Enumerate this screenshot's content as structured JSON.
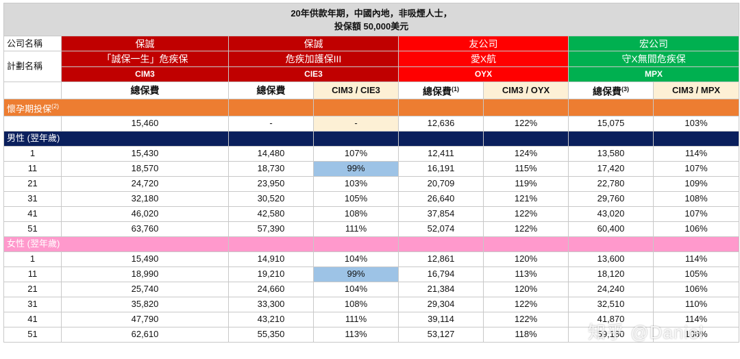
{
  "title_line1": "20年供款年期，中國內地，非吸煙人士，",
  "title_line2": "投保額 50,000美元",
  "labels": {
    "company": "公司名稱",
    "plan": "計劃名稱"
  },
  "companies": [
    {
      "name": "保誠",
      "plan": "「誠保一生」危疾保",
      "code": "CIM3",
      "color": "#c00000"
    },
    {
      "name": "保誠",
      "plan": "危疾加護保III",
      "code": "CIE3",
      "color": "#c00000"
    },
    {
      "name": "友公司",
      "plan": "愛X航",
      "code": "OYX",
      "color": "#ff0000"
    },
    {
      "name": "宏公司",
      "plan": "守X無間危疾保",
      "code": "MPX",
      "color": "#00b050"
    }
  ],
  "headers": {
    "total": "總保費",
    "total_sup1": "(1)",
    "total_sup3": "(3)",
    "r_cie3": "CIM3 / CIE3",
    "r_oyx": "CIM3 / OYX",
    "r_mpx": "CIM3 / MPX"
  },
  "pregnancy": {
    "label": "懷孕期投保",
    "sup": "(2)",
    "row": [
      "15,460",
      "-",
      "-",
      "12,636",
      "122%",
      "15,075",
      "103%"
    ]
  },
  "male": {
    "label": "男性 (翌年歲)",
    "rows": [
      {
        "age": "1",
        "v": [
          "15,430",
          "14,480",
          "107%",
          "12,411",
          "124%",
          "13,580",
          "114%"
        ]
      },
      {
        "age": "11",
        "v": [
          "18,570",
          "18,730",
          "99%",
          "16,191",
          "115%",
          "17,420",
          "107%"
        ]
      },
      {
        "age": "21",
        "v": [
          "24,720",
          "23,950",
          "103%",
          "20,709",
          "119%",
          "22,780",
          "109%"
        ]
      },
      {
        "age": "31",
        "v": [
          "32,180",
          "30,520",
          "105%",
          "26,640",
          "121%",
          "29,760",
          "108%"
        ]
      },
      {
        "age": "41",
        "v": [
          "46,020",
          "42,580",
          "108%",
          "37,854",
          "122%",
          "43,020",
          "107%"
        ]
      },
      {
        "age": "51",
        "v": [
          "63,760",
          "57,390",
          "111%",
          "52,074",
          "122%",
          "60,400",
          "106%"
        ]
      }
    ]
  },
  "female": {
    "label": "女性 (翌年歲)",
    "rows": [
      {
        "age": "1",
        "v": [
          "15,490",
          "14,910",
          "104%",
          "12,861",
          "120%",
          "13,600",
          "114%"
        ]
      },
      {
        "age": "11",
        "v": [
          "18,990",
          "19,210",
          "99%",
          "16,794",
          "113%",
          "18,120",
          "105%"
        ]
      },
      {
        "age": "21",
        "v": [
          "25,740",
          "24,660",
          "104%",
          "21,384",
          "120%",
          "24,240",
          "106%"
        ]
      },
      {
        "age": "31",
        "v": [
          "35,820",
          "33,300",
          "108%",
          "29,304",
          "122%",
          "32,510",
          "110%"
        ]
      },
      {
        "age": "41",
        "v": [
          "47,790",
          "43,210",
          "111%",
          "39,114",
          "122%",
          "41,870",
          "114%"
        ]
      },
      {
        "age": "51",
        "v": [
          "62,610",
          "55,350",
          "113%",
          "53,127",
          "118%",
          "59,180",
          "106%"
        ]
      }
    ]
  },
  "watermark": "知乎 @Daniel"
}
